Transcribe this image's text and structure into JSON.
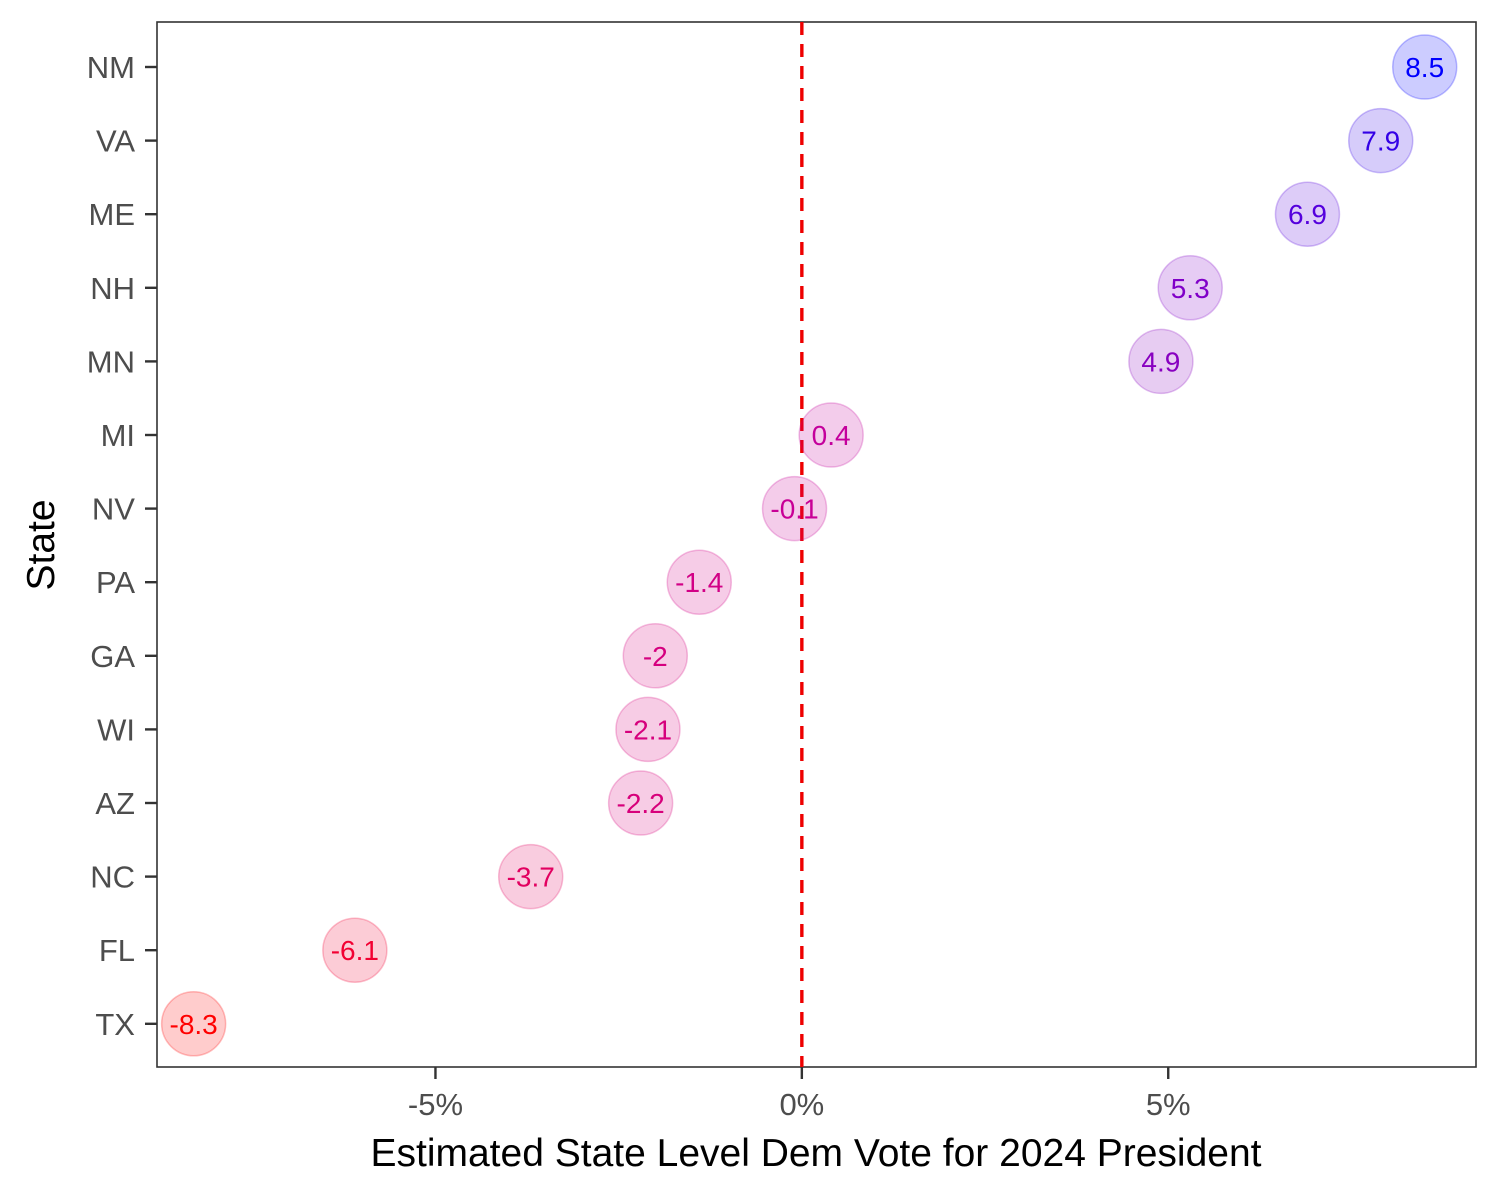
{
  "chart_data": {
    "type": "scatter",
    "title": "",
    "xlabel": "Estimated State Level Dem Vote for 2024 President",
    "ylabel": "State",
    "xlim": [
      -8.8,
      9.2
    ],
    "x_ticks": [
      {
        "value": -5,
        "label": "-5%"
      },
      {
        "value": 0,
        "label": "0%"
      },
      {
        "value": 5,
        "label": "5%"
      }
    ],
    "reference_line": {
      "x": 0,
      "style": "dashed",
      "color": "#ee0000"
    },
    "grid": false,
    "legend": "none",
    "points": [
      {
        "state": "NM",
        "value": 8.5,
        "label": "8.5",
        "color": "#0000ff"
      },
      {
        "state": "VA",
        "value": 7.9,
        "label": "7.9",
        "color": "#3300e6"
      },
      {
        "state": "ME",
        "value": 6.9,
        "label": "6.9",
        "color": "#5500dd"
      },
      {
        "state": "NH",
        "value": 5.3,
        "label": "5.3",
        "color": "#8000c8"
      },
      {
        "state": "MN",
        "value": 4.9,
        "label": "4.9",
        "color": "#8800c0"
      },
      {
        "state": "MI",
        "value": 0.4,
        "label": "0.4",
        "color": "#c4009c"
      },
      {
        "state": "NV",
        "value": -0.1,
        "label": "-0.1",
        "color": "#c80096"
      },
      {
        "state": "PA",
        "value": -1.4,
        "label": "-1.4",
        "color": "#d20086"
      },
      {
        "state": "GA",
        "value": -2,
        "label": "-2",
        "color": "#d5007f"
      },
      {
        "state": "WI",
        "value": -2.1,
        "label": "-2.1",
        "color": "#d6007d"
      },
      {
        "state": "AZ",
        "value": -2.2,
        "label": "-2.2",
        "color": "#d7007b"
      },
      {
        "state": "NC",
        "value": -3.7,
        "label": "-3.7",
        "color": "#e20060"
      },
      {
        "state": "FL",
        "value": -6.1,
        "label": "-6.1",
        "color": "#f20032"
      },
      {
        "state": "TX",
        "value": -8.3,
        "label": "-8.3",
        "color": "#ff0000"
      }
    ]
  }
}
